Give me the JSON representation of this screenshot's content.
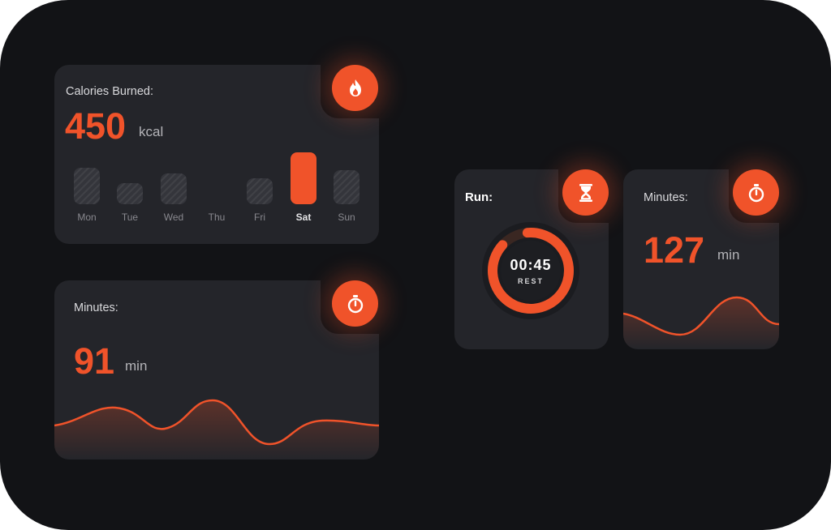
{
  "calories_card": {
    "title": "Calories Burned:",
    "value": "450",
    "unit": "kcal",
    "icon": "flame-icon",
    "days": [
      {
        "label": "Mon",
        "level": 0.7,
        "active": false
      },
      {
        "label": "Tue",
        "level": 0.4,
        "active": false
      },
      {
        "label": "Wed",
        "level": 0.6,
        "active": false
      },
      {
        "label": "Thu",
        "level": 0.0,
        "active": false
      },
      {
        "label": "Fri",
        "level": 0.5,
        "active": false
      },
      {
        "label": "Sat",
        "level": 1.0,
        "active": true
      },
      {
        "label": "Sun",
        "level": 0.66,
        "active": false
      }
    ]
  },
  "minutes_card_large": {
    "title": "Minutes:",
    "value": "91",
    "unit": "min",
    "icon": "stopwatch-icon"
  },
  "run_card": {
    "title": "Run:",
    "timer": "00:45",
    "status": "REST",
    "icon": "hourglass-icon",
    "progress": 0.88
  },
  "minutes_card_small": {
    "title": "Minutes:",
    "value": "127",
    "unit": "min",
    "icon": "stopwatch-icon"
  },
  "colors": {
    "accent": "#f0532a",
    "card": "#24252a",
    "background": "#121316"
  }
}
